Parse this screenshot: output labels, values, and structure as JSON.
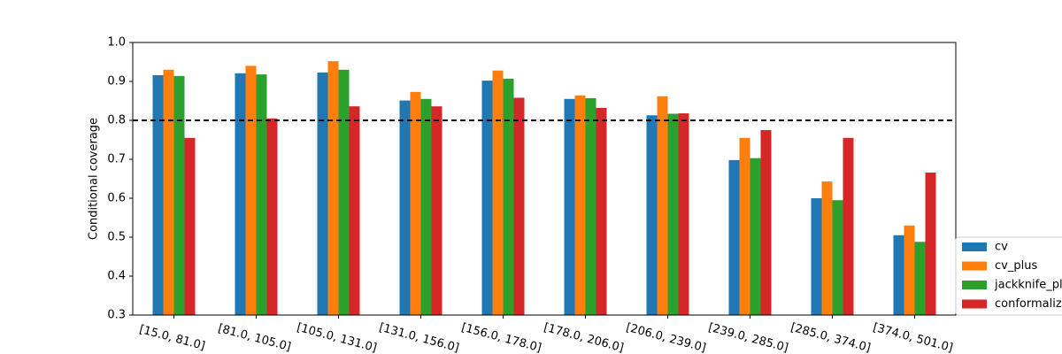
{
  "chart_data": {
    "type": "bar",
    "ylabel": "Conditional coverage",
    "categories": [
      "[15.0, 81.0]",
      "[81.0, 105.0]",
      "[105.0, 131.0]",
      "[131.0, 156.0]",
      "[156.0, 178.0]",
      "[178.0, 206.0]",
      "[206.0, 239.0]",
      "[239.0, 285.0]",
      "[285.0, 374.0]",
      "[374.0, 501.0]"
    ],
    "series": [
      {
        "name": "cv",
        "color": "#1f77b4",
        "values": [
          0.916,
          0.921,
          0.923,
          0.851,
          0.902,
          0.855,
          0.813,
          0.698,
          0.6,
          0.505
        ]
      },
      {
        "name": "cv_plus",
        "color": "#ff7f0e",
        "values": [
          0.93,
          0.94,
          0.952,
          0.873,
          0.928,
          0.864,
          0.862,
          0.755,
          0.643,
          0.53
        ]
      },
      {
        "name": "jackknife_plus",
        "color": "#2ca02c",
        "values": [
          0.914,
          0.918,
          0.93,
          0.855,
          0.907,
          0.857,
          0.817,
          0.703,
          0.595,
          0.488
        ]
      },
      {
        "name": "conformalized_quantile_regression",
        "color": "#d62728",
        "values": [
          0.755,
          0.805,
          0.836,
          0.836,
          0.858,
          0.832,
          0.818,
          0.775,
          0.755,
          0.666
        ]
      }
    ],
    "hline": 0.8,
    "ylim": [
      0.3,
      1.0
    ],
    "yticks": [
      0.3,
      0.4,
      0.5,
      0.6,
      0.7,
      0.8,
      0.9,
      {
        "value": 1,
        "label": "1.0"
      }
    ],
    "legend": "lower right"
  }
}
